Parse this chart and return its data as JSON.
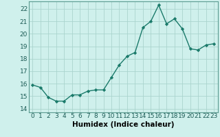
{
  "x": [
    0,
    1,
    2,
    3,
    4,
    5,
    6,
    7,
    8,
    9,
    10,
    11,
    12,
    13,
    14,
    15,
    16,
    17,
    18,
    19,
    20,
    21,
    22,
    23
  ],
  "y": [
    15.9,
    15.7,
    14.9,
    14.6,
    14.6,
    15.1,
    15.1,
    15.4,
    15.5,
    15.5,
    16.5,
    17.5,
    18.2,
    18.5,
    20.5,
    21.0,
    22.3,
    20.8,
    21.2,
    20.4,
    18.8,
    18.7,
    19.1,
    19.2
  ],
  "line_color": "#1a7a6a",
  "marker": "D",
  "marker_size": 2.2,
  "bg_color": "#cff0ec",
  "grid_color": "#aad4ce",
  "xlabel": "Humidex (Indice chaleur)",
  "ylim": [
    13.7,
    22.6
  ],
  "yticks": [
    14,
    15,
    16,
    17,
    18,
    19,
    20,
    21,
    22
  ],
  "xlim": [
    -0.5,
    23.5
  ],
  "xticks": [
    0,
    1,
    2,
    3,
    4,
    5,
    6,
    7,
    8,
    9,
    10,
    11,
    12,
    13,
    14,
    15,
    16,
    17,
    18,
    19,
    20,
    21,
    22,
    23
  ],
  "tick_fontsize": 6.5,
  "xlabel_fontsize": 7.5,
  "line_width": 1.0
}
